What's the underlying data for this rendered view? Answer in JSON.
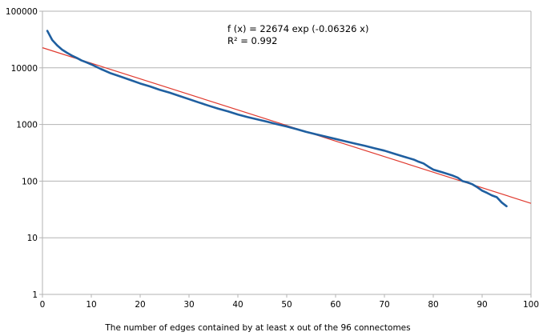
{
  "chart_data": {
    "type": "line",
    "xlabel": "The number of edges contained by at least x out of the 96 connectomes",
    "ylabel": "",
    "x_scale": "linear",
    "y_scale": "log",
    "xlim": [
      0,
      100
    ],
    "ylim": [
      1,
      100000
    ],
    "x_ticks": [
      0,
      10,
      20,
      30,
      40,
      50,
      60,
      70,
      80,
      90,
      100
    ],
    "x_tick_labels": [
      "0",
      "10",
      "20",
      "30",
      "40",
      "50",
      "60",
      "70",
      "80",
      "90",
      "100"
    ],
    "y_ticks": [
      1,
      10,
      100,
      1000,
      10000,
      100000
    ],
    "y_tick_labels": [
      "1",
      "10",
      "100",
      "1000",
      "10000",
      "100000"
    ],
    "grid": "horizontal",
    "annotations": [
      "f (x) = 22674 exp (-0.06326 x)",
      "R² = 0.992"
    ],
    "series": [
      {
        "color": "#1f5fa0",
        "x": [
          1,
          2,
          3,
          4,
          5,
          6,
          7,
          8,
          9,
          10,
          12,
          14,
          16,
          18,
          20,
          22,
          24,
          26,
          28,
          30,
          32,
          34,
          36,
          38,
          40,
          42,
          44,
          46,
          48,
          50,
          52,
          54,
          56,
          58,
          60,
          62,
          64,
          66,
          68,
          70,
          72,
          74,
          76,
          77,
          78,
          79,
          80,
          82,
          84,
          85,
          86,
          87,
          88,
          89,
          90,
          91,
          92,
          93,
          94,
          95
        ],
        "y": [
          45000,
          31000,
          25000,
          21000,
          18500,
          16500,
          15000,
          13500,
          12500,
          11500,
          9500,
          8000,
          7000,
          6100,
          5300,
          4700,
          4100,
          3650,
          3200,
          2800,
          2450,
          2150,
          1900,
          1700,
          1500,
          1350,
          1230,
          1120,
          1010,
          920,
          830,
          740,
          670,
          610,
          555,
          505,
          460,
          420,
          380,
          345,
          305,
          270,
          240,
          220,
          205,
          180,
          160,
          142,
          125,
          115,
          100,
          95,
          88,
          78,
          68,
          62,
          56,
          52,
          42,
          36
        ]
      },
      {
        "color": "#e03a2f",
        "type": "trendline",
        "equation": {
          "a": 22674,
          "b": -0.06326
        },
        "x": [
          0,
          100
        ],
        "y": [
          22674,
          40.56
        ]
      }
    ]
  }
}
